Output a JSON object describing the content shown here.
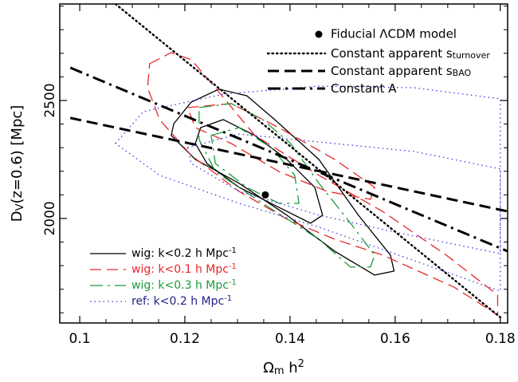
{
  "chart_data": {
    "type": "contour",
    "xlabel": [
      {
        "text": "Ω"
      },
      {
        "text": "m",
        "shift": "sub"
      },
      {
        "text": " h"
      },
      {
        "text": "2",
        "shift": "super"
      }
    ],
    "ylabel": [
      {
        "text": "D"
      },
      {
        "text": "V",
        "shift": "sub"
      },
      {
        "text": "(z=0.6)  [Mpc]"
      }
    ],
    "xlim": [
      0.0962,
      0.1814
    ],
    "ylim": [
      1557,
      2909
    ],
    "xticks": [
      0.1,
      0.12,
      0.14,
      0.16,
      0.18
    ],
    "yticks": [
      2000,
      2500
    ],
    "xminorticks": [
      0.105,
      0.11,
      0.115,
      0.125,
      0.13,
      0.135,
      0.145,
      0.15,
      0.155,
      0.165,
      0.17,
      0.175
    ],
    "yminorticks": [
      1600,
      1700,
      1800,
      1900,
      2100,
      2200,
      2300,
      2400,
      2600,
      2700,
      2800,
      2900
    ],
    "points": [
      {
        "name": "Fiducial ΛCDM model",
        "color": "#000000",
        "x": 0.1353,
        "y": 2100
      }
    ],
    "lines": [
      {
        "name": "Constant apparent s",
        "subscript": "turnover",
        "style": "dotted",
        "color": "#000000",
        "x": [
          0.1068,
          0.18
        ],
        "values": [
          2909,
          1581
        ]
      },
      {
        "name": "Constant apparent s",
        "subscript": "BAO",
        "style": "dashed",
        "color": "#000000",
        "x": [
          0.0982,
          0.1814
        ],
        "values": [
          2426,
          2030
        ]
      },
      {
        "name": "Constant A",
        "style": "dashdot",
        "color": "#000000",
        "x": [
          0.0982,
          0.1814
        ],
        "values": [
          2639,
          1861
        ]
      }
    ],
    "series": [
      {
        "name": "wig: k<0.2 h Mpc",
        "superscript": "-1",
        "style": "solid",
        "color": "#000000",
        "label_color": "#000000",
        "contours": [
          {
            "x": [
              0.1179,
              0.1212,
              0.1265,
              0.1318,
              0.1371,
              0.1455,
              0.153,
              0.1591,
              0.1598,
              0.1561,
              0.1485,
              0.1394,
              0.1303,
              0.122,
              0.1174
            ],
            "values": [
              2402,
              2493,
              2548,
              2520,
              2419,
              2250,
              2014,
              1845,
              1777,
              1760,
              1861,
              2014,
              2149,
              2250,
              2352
            ]
          },
          {
            "x": [
              0.123,
              0.1273,
              0.1333,
              0.1394,
              0.1447,
              0.1462,
              0.1439,
              0.1379,
              0.1303,
              0.1242,
              0.122
            ],
            "values": [
              2385,
              2419,
              2352,
              2250,
              2132,
              2014,
              1980,
              2047,
              2132,
              2233,
              2318
            ]
          }
        ]
      },
      {
        "name": "wig: k<0.1 h Mpc",
        "superscript": "-1",
        "style": "dashed",
        "color": "#e8262a",
        "label_color": "#e8262a",
        "contours": [
          {
            "x": [
              0.1133,
              0.1174,
              0.1212,
              0.1258,
              0.1333,
              0.1455,
              0.1576,
              0.1697,
              0.1795,
              0.1795,
              0.1712,
              0.1576,
              0.1485,
              0.1394,
              0.1303,
              0.1212,
              0.1152,
              0.1129
            ],
            "values": [
              2656,
              2703,
              2673,
              2554,
              2352,
              2183,
              2030,
              1845,
              1676,
              1591,
              1709,
              1845,
              1912,
              1997,
              2115,
              2267,
              2419,
              2554
            ]
          },
          {
            "x": [
              0.1205,
              0.1288,
              0.1379,
              0.1485,
              0.1561,
              0.1553,
              0.147,
              0.1379,
              0.1288,
              0.122
            ],
            "values": [
              2470,
              2487,
              2385,
              2250,
              2132,
              2081,
              2115,
              2199,
              2318,
              2385
            ]
          }
        ]
      },
      {
        "name": "wig: k<0.3 h Mpc",
        "superscript": "-1",
        "style": "dashdot",
        "color": "#1a9b3c",
        "label_color": "#1a9b3c",
        "contours": [
          {
            "x": [
              0.1227,
              0.1288,
              0.1348,
              0.1401,
              0.1455,
              0.1515,
              0.1561,
              0.1553,
              0.1515,
              0.1455,
              0.1348,
              0.1258,
              0.1227
            ],
            "values": [
              2470,
              2487,
              2419,
              2318,
              2149,
              1980,
              1845,
              1794,
              1794,
              1912,
              2064,
              2199,
              2335
            ]
          },
          {
            "x": [
              0.125,
              0.1303,
              0.1364,
              0.1409,
              0.1417,
              0.1379,
              0.1318,
              0.1258
            ],
            "values": [
              2352,
              2385,
              2301,
              2183,
              2064,
              2064,
              2132,
              2233
            ]
          }
        ]
      },
      {
        "name": "ref: k<0.2 h Mpc",
        "superscript": "-1",
        "style": "dotted",
        "color": "#3a3ad8",
        "label_color": "#22228a",
        "contours": [
          {
            "x": [
              0.1068,
              0.1121,
              0.1273,
              0.1455,
              0.1636,
              0.18,
              0.18,
              0.1606,
              0.1455,
              0.1303,
              0.1152
            ],
            "values": [
              2318,
              2453,
              2527,
              2561,
              2554,
              2507,
              1692,
              1845,
              1963,
              2064,
              2183
            ]
          },
          {
            "x": [
              0.1205,
              0.1303,
              0.1455,
              0.1636,
              0.18,
              0.18,
              0.1606,
              0.1455,
              0.1303,
              0.1212
            ],
            "values": [
              2301,
              2358,
              2324,
              2284,
              2210,
              1851,
              1939,
              2014,
              2115,
              2233
            ]
          }
        ]
      }
    ]
  }
}
